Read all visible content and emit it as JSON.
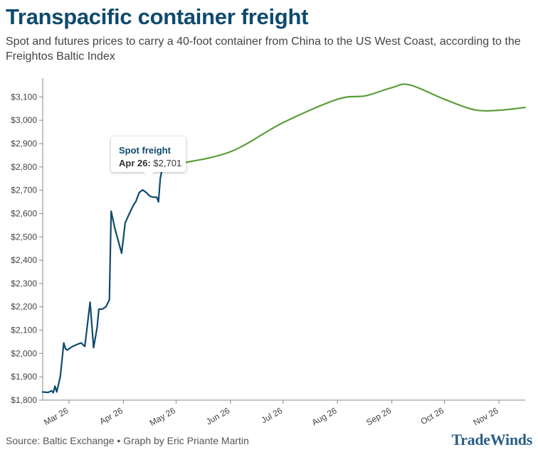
{
  "header": {
    "title": "Transpacific container freight",
    "subtitle": "Spot and futures prices to carry a 40-foot container from China to the US West Coast, according to the Freightos Baltic Index"
  },
  "footer": {
    "source": "Source: Baltic Exchange • Graph by Eric Priante Martin",
    "logo_text": "TradeWinds"
  },
  "tooltip": {
    "series": "Spot freight",
    "date": "Apr 26:",
    "value": "$2,701"
  },
  "colors": {
    "spot": "#0f4a6e",
    "futures": "#5a9e3a",
    "title": "#0f4a6e",
    "axis": "#888888"
  },
  "chart_data": {
    "type": "line",
    "title": "Transpacific container freight",
    "xlabel": "",
    "ylabel": "",
    "x_axis": {
      "type": "date",
      "range": [
        "2026-02-28",
        "2026-11-30"
      ],
      "ticks": [
        {
          "date": "2026-03-15",
          "label": "Mar 26"
        },
        {
          "date": "2026-04-15",
          "label": "Apr 26"
        },
        {
          "date": "2026-05-15",
          "label": "May 26"
        },
        {
          "date": "2026-06-15",
          "label": "Jun 26"
        },
        {
          "date": "2026-07-15",
          "label": "Jul 26"
        },
        {
          "date": "2026-08-15",
          "label": "Aug 26"
        },
        {
          "date": "2026-09-15",
          "label": "Sep 26"
        },
        {
          "date": "2026-10-15",
          "label": "Oct 26"
        },
        {
          "date": "2026-11-15",
          "label": "Nov 26"
        }
      ]
    },
    "y_axis": {
      "range": [
        1800,
        3150
      ],
      "ticks": [
        1800,
        1900,
        2000,
        2100,
        2200,
        2300,
        2400,
        2500,
        2600,
        2700,
        2800,
        2900,
        3000,
        3100
      ],
      "tick_labels": [
        "$1,800",
        "$1,900",
        "$2,000",
        "$2,100",
        "$2,200",
        "$2,300",
        "$2,400",
        "$2,500",
        "$2,600",
        "$2,700",
        "$2,800",
        "$2,900",
        "$3,000",
        "$3,100"
      ]
    },
    "grid": false,
    "legend": "none",
    "series": [
      {
        "name": "Spot freight",
        "color": "#0f4a6e",
        "points": [
          [
            "2026-02-28",
            1835
          ],
          [
            "2026-03-03",
            1833
          ],
          [
            "2026-03-05",
            1840
          ],
          [
            "2026-03-06",
            1832
          ],
          [
            "2026-03-07",
            1860
          ],
          [
            "2026-03-08",
            1835
          ],
          [
            "2026-03-10",
            1900
          ],
          [
            "2026-03-12",
            2045
          ],
          [
            "2026-03-13",
            2020
          ],
          [
            "2026-03-14",
            2015
          ],
          [
            "2026-03-17",
            2030
          ],
          [
            "2026-03-20",
            2040
          ],
          [
            "2026-03-22",
            2045
          ],
          [
            "2026-03-24",
            2030
          ],
          [
            "2026-03-27",
            2220
          ],
          [
            "2026-03-29",
            2025
          ],
          [
            "2026-03-31",
            2110
          ],
          [
            "2026-04-01",
            2190
          ],
          [
            "2026-04-03",
            2190
          ],
          [
            "2026-04-05",
            2200
          ],
          [
            "2026-04-07",
            2230
          ],
          [
            "2026-04-08",
            2610
          ],
          [
            "2026-04-10",
            2540
          ],
          [
            "2026-04-14",
            2430
          ],
          [
            "2026-04-16",
            2560
          ],
          [
            "2026-04-19",
            2610
          ],
          [
            "2026-04-21",
            2640
          ],
          [
            "2026-04-22",
            2650
          ],
          [
            "2026-04-24",
            2690
          ],
          [
            "2026-04-26",
            2701
          ],
          [
            "2026-04-28",
            2690
          ],
          [
            "2026-04-30",
            2675
          ],
          [
            "2026-05-02",
            2670
          ],
          [
            "2026-05-04",
            2670
          ],
          [
            "2026-05-05",
            2650
          ],
          [
            "2026-05-06",
            2750
          ],
          [
            "2026-05-08",
            2830
          ],
          [
            "2026-05-10",
            2850
          ],
          [
            "2026-05-12",
            2810
          ],
          [
            "2026-05-14",
            2815
          ],
          [
            "2026-05-16",
            2813
          ]
        ]
      },
      {
        "name": "Futures",
        "color": "#5a9e3a",
        "points": [
          [
            "2026-05-16",
            2813
          ],
          [
            "2026-06-15",
            2865
          ],
          [
            "2026-07-15",
            2990
          ],
          [
            "2026-08-15",
            3090
          ],
          [
            "2026-08-31",
            3105
          ],
          [
            "2026-09-15",
            3140
          ],
          [
            "2026-09-25",
            3152
          ],
          [
            "2026-10-15",
            3090
          ],
          [
            "2026-11-01",
            3045
          ],
          [
            "2026-11-15",
            3043
          ],
          [
            "2026-11-30",
            3055
          ]
        ]
      }
    ]
  }
}
